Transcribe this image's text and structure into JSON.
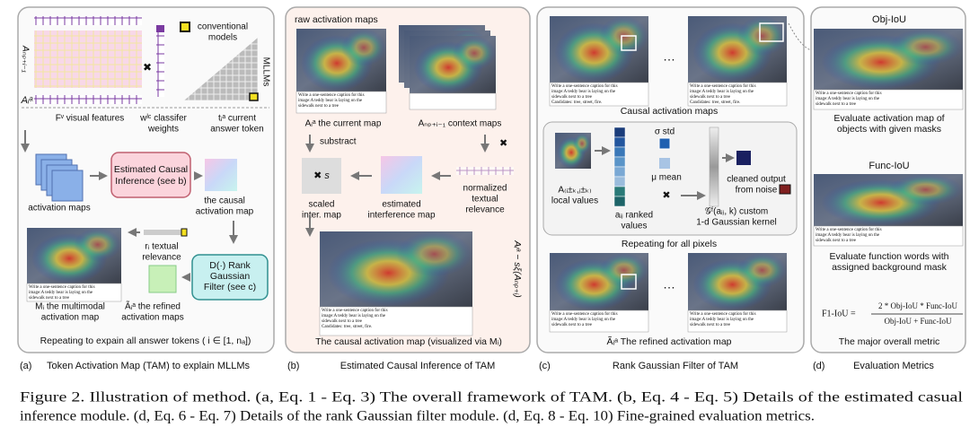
{
  "panel_a": {
    "tag": "(a)",
    "title": "Token Activation Map (TAM) to explain MLLMs",
    "conventional": [
      "conventional",
      "models"
    ],
    "mllms": "MLLMs",
    "context_map": "Aₙₚ₊ᵢ₋₁",
    "current_map": "Aᵢᵃ",
    "visual_features": "Fᵛ visual features",
    "classifier": [
      "wˡᶜ classifer",
      "weights"
    ],
    "answer_token": [
      "tᵢᵃ current",
      "answer token"
    ],
    "activation_maps": "activation maps",
    "causal_box": [
      "Estimated Causal",
      "Inference (see b)"
    ],
    "causal_map": [
      "the causal",
      "activation map"
    ],
    "textual_relevance": [
      "rᵢ textual",
      "relevance"
    ],
    "rank_box": [
      "D(·) Rank",
      "Gaussian",
      "Filter (see c)"
    ],
    "multimodal_map": [
      "Mᵢ the multimodal",
      "activation map"
    ],
    "refined_maps": [
      "Ãᵢᵃ the refined",
      "activation maps"
    ],
    "repeat": "Repeating to expain all answer tokens ( i ∈ [1, nₐ])"
  },
  "panel_b": {
    "tag": "(b)",
    "title": "Estimated Causal Inference of TAM",
    "raw_maps": "raw activation maps",
    "current_map": "Aᵢᵃ the current map",
    "context_maps": "Aₙₚ₊ᵢ₋₁   context maps",
    "subtract": "substract",
    "scale": "✖ s",
    "scaled_map": [
      "scaled",
      "inter. map"
    ],
    "interference_map": [
      "estimated",
      "interference map"
    ],
    "relevance": [
      "normalized",
      "textual",
      "relevance"
    ],
    "formula": "Aᵢᵃ − sξ(Aₙₚ₊ᵢ)",
    "result": "The causal activation map (visualized via Mᵢ)"
  },
  "panel_c": {
    "tag": "(c)",
    "title": "Rank Gaussian Filter of TAM",
    "causal_maps": "Causal activation maps",
    "ellipsis": "…",
    "std": "σ std",
    "mean": "μ mean",
    "cleaned": [
      "cleaned output",
      "from noise"
    ],
    "local": [
      "A₍ᵢ±ₖ,ⱼ±ₖ₎",
      "local values"
    ],
    "ranked": [
      "aᵢⱼ ranked",
      "values"
    ],
    "kernel": [
      "𝒢ᶠ(aᵢⱼ, k) custom",
      "1-d Gaussian kernel"
    ],
    "repeat": "Repeating for all pixels",
    "refined": "Ãᵢᵃ The refined activation map"
  },
  "panel_d": {
    "tag": "(d)",
    "title": "Evaluation Metrics",
    "obj_iou": "Obj-IoU",
    "obj_desc": [
      "Evaluate activation map of",
      "objects with given masks"
    ],
    "func_iou": "Func-IoU",
    "func_desc": [
      "Evaluate function words with",
      "assigned background mask"
    ],
    "f1_lhs": "F1-IoU =",
    "f1_num": "2 * Obj-IoU * Func-IoU",
    "f1_den": "Obj-IoU + Func-IoU",
    "overall": "The major overall metric"
  },
  "thumbnail_caption": [
    "Write a one-sentence caption for this",
    "image:A teddy bear is laying on the",
    "sidewalk next to a tree",
    "Candidates: tree, street, fire."
  ],
  "caption": [
    "Figure 2. Illustration of method. (a, Eq. 1 - Eq. 3) The overall framework of TAM. (b, Eq. 4 - Eq. 5) Details of the estimated casual",
    "inference module. (d, Eq. 6 - Eq. 7) Details of the rank Gaussian filter module. (d, Eq. 8 - Eq. 10) Fine-grained evaluation metrics."
  ]
}
